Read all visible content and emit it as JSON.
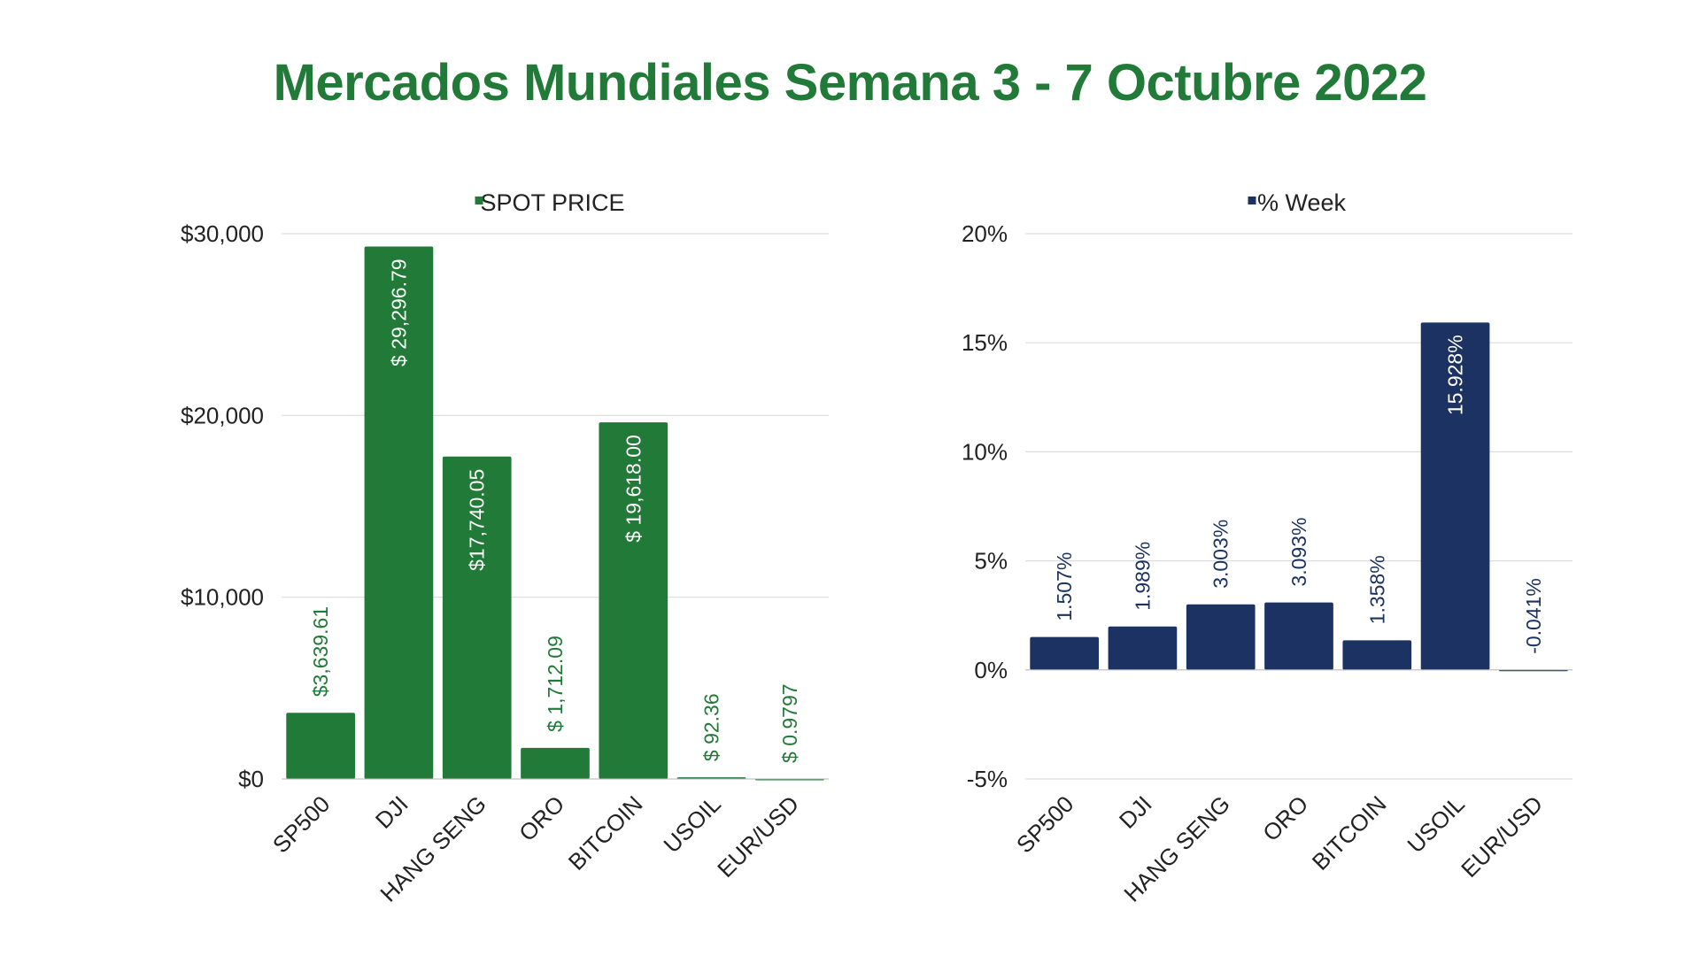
{
  "title": "Mercados Mundiales Semana 3 - 7 Octubre 2022",
  "colors": {
    "title": "#217a37",
    "green": "#217a37",
    "navy": "#1b3263",
    "grid": "#dddddd",
    "text": "#222222"
  },
  "chart_data": [
    {
      "type": "bar",
      "title": "",
      "legend": "SPOT PRICE",
      "legend_position": "top-center",
      "color": "#217a37",
      "categories": [
        "SP500",
        "DJI",
        "HANG SENG",
        "ORO",
        "BITCOIN",
        "USOIL",
        "EUR/USD"
      ],
      "values": [
        3639.61,
        29296.79,
        17740.05,
        1712.09,
        19618.0,
        92.36,
        0.9797
      ],
      "data_labels": [
        "$3,639.61",
        "$ 29,296.79",
        "$17,740.05",
        "$ 1,712.09",
        "$ 19,618.00",
        "$ 92.36",
        "$ 0.9797"
      ],
      "ylim": [
        0,
        30000
      ],
      "y_ticks": [
        0,
        10000,
        20000,
        30000
      ],
      "y_tick_labels": [
        "$0",
        "$10,000",
        "$20,000",
        "$30,000"
      ],
      "grid": true
    },
    {
      "type": "bar",
      "title": "",
      "legend": "% Week",
      "legend_position": "top-center",
      "color": "#1b3263",
      "categories": [
        "SP500",
        "DJI",
        "HANG SENG",
        "ORO",
        "BITCOIN",
        "USOIL",
        "EUR/USD"
      ],
      "values": [
        1.507,
        1.989,
        3.003,
        3.093,
        1.358,
        15.928,
        -0.041
      ],
      "data_labels": [
        "1.507%",
        "1.989%",
        "3.003%",
        "3.093%",
        "1.358%",
        "15.928%",
        "-0.041%"
      ],
      "ylim": [
        -5,
        20
      ],
      "y_ticks": [
        -5,
        0,
        5,
        10,
        15,
        20
      ],
      "y_tick_labels": [
        "-5%",
        "0%",
        "5%",
        "10%",
        "15%",
        "20%"
      ],
      "grid": true
    }
  ]
}
